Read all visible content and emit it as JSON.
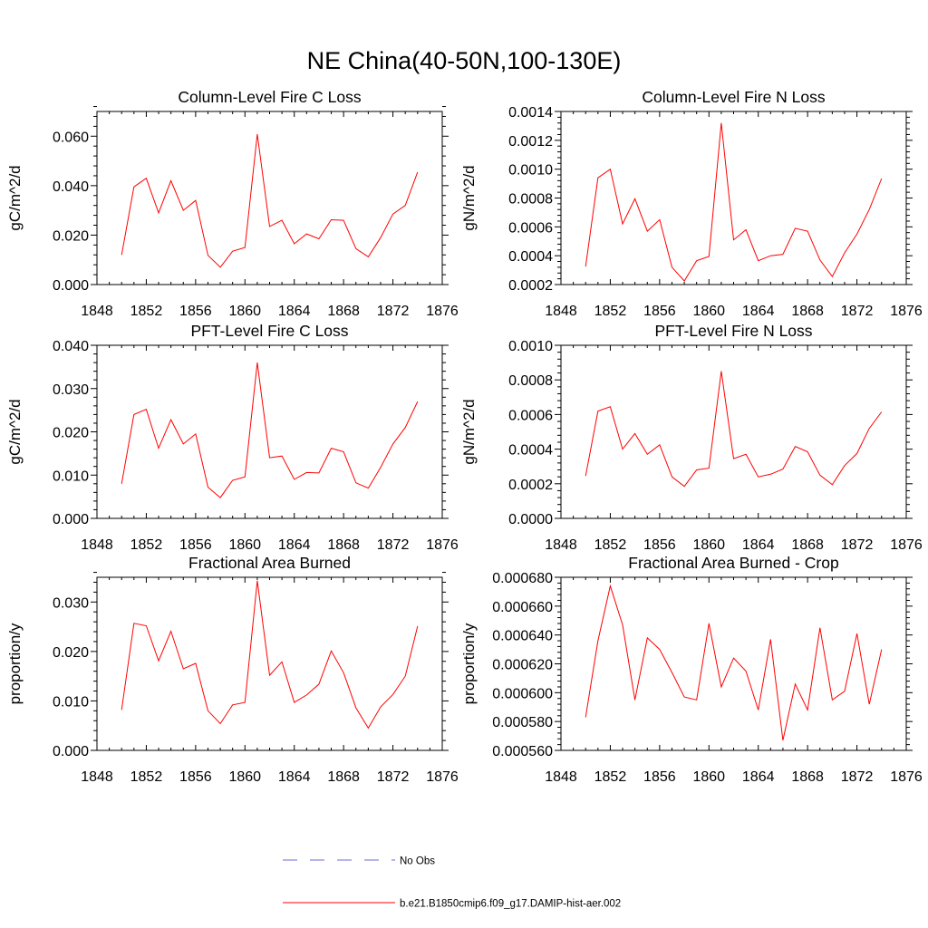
{
  "figure": {
    "title": "NE China(40-50N,100-130E)",
    "legend": {
      "no_obs_label": "No Obs",
      "no_obs_color": "#6b6bd6",
      "model_label": "b.e21.B1850cmip6.f09_g17.DAMIP-hist-aer.002",
      "model_color": "#ff0000"
    }
  },
  "chart_data": [
    {
      "type": "line",
      "title": "Column-Level Fire C Loss",
      "ylabel": "gC/m^2/d",
      "xlabel": "",
      "xlim": [
        1848,
        1876
      ],
      "ylim": [
        0,
        0.07
      ],
      "xticks": [
        "1848",
        "1852",
        "1856",
        "1860",
        "1864",
        "1868",
        "1872",
        "1876"
      ],
      "yticks": [
        "0.000",
        "0.020",
        "0.040",
        "0.060"
      ],
      "ytick_values": [
        0,
        0.02,
        0.04,
        0.06
      ],
      "x": [
        1850,
        1851,
        1852,
        1853,
        1854,
        1855,
        1856,
        1857,
        1858,
        1859,
        1860,
        1861,
        1862,
        1863,
        1864,
        1865,
        1866,
        1867,
        1868,
        1869,
        1870,
        1871,
        1872,
        1873,
        1874
      ],
      "series": [
        {
          "name": "b.e21.B1850cmip6.f09_g17.DAMIP-hist-aer.002",
          "color": "#ff0000",
          "values": [
            0.012,
            0.0395,
            0.043,
            0.029,
            0.042,
            0.03,
            0.034,
            0.0118,
            0.007,
            0.0135,
            0.015,
            0.0608,
            0.0235,
            0.026,
            0.0165,
            0.0205,
            0.0185,
            0.0262,
            0.026,
            0.0145,
            0.0112,
            0.019,
            0.0285,
            0.032,
            0.0455
          ]
        }
      ]
    },
    {
      "type": "line",
      "title": "Column-Level Fire N Loss",
      "ylabel": "gN/m^2/d",
      "xlabel": "",
      "xlim": [
        1848,
        1876
      ],
      "ylim": [
        0.0002,
        0.0014
      ],
      "xticks": [
        "1848",
        "1852",
        "1856",
        "1860",
        "1864",
        "1868",
        "1872",
        "1876"
      ],
      "yticks": [
        "0.0002",
        "0.0004",
        "0.0006",
        "0.0008",
        "0.0010",
        "0.0012",
        "0.0014"
      ],
      "ytick_values": [
        0.0002,
        0.0004,
        0.0006,
        0.0008,
        0.001,
        0.0012,
        0.0014
      ],
      "x": [
        1850,
        1851,
        1852,
        1853,
        1854,
        1855,
        1856,
        1857,
        1858,
        1859,
        1860,
        1861,
        1862,
        1863,
        1864,
        1865,
        1866,
        1867,
        1868,
        1869,
        1870,
        1871,
        1872,
        1873,
        1874
      ],
      "series": [
        {
          "name": "b.e21.B1850cmip6.f09_g17.DAMIP-hist-aer.002",
          "color": "#ff0000",
          "values": [
            0.000325,
            0.00094,
            0.001,
            0.00062,
            0.000795,
            0.00057,
            0.00065,
            0.00032,
            0.000225,
            0.000365,
            0.000395,
            0.00132,
            0.00051,
            0.00058,
            0.000365,
            0.0004,
            0.00041,
            0.00059,
            0.00057,
            0.00037,
            0.000255,
            0.00042,
            0.00055,
            0.00072,
            0.000935
          ]
        }
      ]
    },
    {
      "type": "line",
      "title": "PFT-Level Fire C Loss",
      "ylabel": "gC/m^2/d",
      "xlabel": "",
      "xlim": [
        1848,
        1876
      ],
      "ylim": [
        0,
        0.04
      ],
      "xticks": [
        "1848",
        "1852",
        "1856",
        "1860",
        "1864",
        "1868",
        "1872",
        "1876"
      ],
      "yticks": [
        "0.000",
        "0.010",
        "0.020",
        "0.030",
        "0.040"
      ],
      "ytick_values": [
        0,
        0.01,
        0.02,
        0.03,
        0.04
      ],
      "x": [
        1850,
        1851,
        1852,
        1853,
        1854,
        1855,
        1856,
        1857,
        1858,
        1859,
        1860,
        1861,
        1862,
        1863,
        1864,
        1865,
        1866,
        1867,
        1868,
        1869,
        1870,
        1871,
        1872,
        1873,
        1874
      ],
      "series": [
        {
          "name": "b.e21.B1850cmip6.f09_g17.DAMIP-hist-aer.002",
          "color": "#ff0000",
          "values": [
            0.008,
            0.024,
            0.0252,
            0.0162,
            0.0228,
            0.0172,
            0.0195,
            0.0072,
            0.0048,
            0.0088,
            0.0096,
            0.036,
            0.014,
            0.0144,
            0.009,
            0.0106,
            0.0105,
            0.0162,
            0.0154,
            0.0082,
            0.007,
            0.0118,
            0.0172,
            0.021,
            0.027
          ]
        }
      ]
    },
    {
      "type": "line",
      "title": "PFT-Level Fire N Loss",
      "ylabel": "gN/m^2/d",
      "xlabel": "",
      "xlim": [
        1848,
        1876
      ],
      "ylim": [
        0,
        0.001
      ],
      "xticks": [
        "1848",
        "1852",
        "1856",
        "1860",
        "1864",
        "1868",
        "1872",
        "1876"
      ],
      "yticks": [
        "0.0000",
        "0.0002",
        "0.0004",
        "0.0006",
        "0.0008",
        "0.0010"
      ],
      "ytick_values": [
        0,
        0.0002,
        0.0004,
        0.0006,
        0.0008,
        0.001
      ],
      "x": [
        1850,
        1851,
        1852,
        1853,
        1854,
        1855,
        1856,
        1857,
        1858,
        1859,
        1860,
        1861,
        1862,
        1863,
        1864,
        1865,
        1866,
        1867,
        1868,
        1869,
        1870,
        1871,
        1872,
        1873,
        1874
      ],
      "series": [
        {
          "name": "b.e21.B1850cmip6.f09_g17.DAMIP-hist-aer.002",
          "color": "#ff0000",
          "values": [
            0.000245,
            0.00062,
            0.000645,
            0.0004,
            0.00049,
            0.00037,
            0.000425,
            0.00024,
            0.000185,
            0.00028,
            0.00029,
            0.00085,
            0.000345,
            0.00037,
            0.00024,
            0.000255,
            0.000285,
            0.000415,
            0.000385,
            0.00025,
            0.000195,
            0.000305,
            0.000375,
            0.00052,
            0.000615
          ]
        }
      ]
    },
    {
      "type": "line",
      "title": "Fractional Area Burned",
      "ylabel": "proportion/y",
      "xlabel": "",
      "xlim": [
        1848,
        1876
      ],
      "ylim": [
        0,
        0.035
      ],
      "xticks": [
        "1848",
        "1852",
        "1856",
        "1860",
        "1864",
        "1868",
        "1872",
        "1876"
      ],
      "yticks": [
        "0.000",
        "0.010",
        "0.020",
        "0.030"
      ],
      "ytick_values": [
        0,
        0.01,
        0.02,
        0.03
      ],
      "x": [
        1850,
        1851,
        1852,
        1853,
        1854,
        1855,
        1856,
        1857,
        1858,
        1859,
        1860,
        1861,
        1862,
        1863,
        1864,
        1865,
        1866,
        1867,
        1868,
        1869,
        1870,
        1871,
        1872,
        1873,
        1874
      ],
      "series": [
        {
          "name": "b.e21.B1850cmip6.f09_g17.DAMIP-hist-aer.002",
          "color": "#ff0000",
          "values": [
            0.0082,
            0.0257,
            0.0252,
            0.0181,
            0.0241,
            0.0165,
            0.0176,
            0.008,
            0.0054,
            0.0092,
            0.0097,
            0.0343,
            0.0152,
            0.0179,
            0.0097,
            0.0112,
            0.0134,
            0.0201,
            0.0157,
            0.0086,
            0.0045,
            0.0088,
            0.0113,
            0.015,
            0.0251
          ]
        }
      ]
    },
    {
      "type": "line",
      "title": "Fractional Area Burned - Crop",
      "ylabel": "proportion/y",
      "xlabel": "",
      "xlim": [
        1848,
        1876
      ],
      "ylim": [
        0.00056,
        0.00068
      ],
      "xticks": [
        "1848",
        "1852",
        "1856",
        "1860",
        "1864",
        "1868",
        "1872",
        "1876"
      ],
      "yticks": [
        "0.000560",
        "0.000580",
        "0.000600",
        "0.000620",
        "0.000640",
        "0.000660",
        "0.000680"
      ],
      "ytick_values": [
        0.00056,
        0.00058,
        0.0006,
        0.00062,
        0.00064,
        0.00066,
        0.00068
      ],
      "x": [
        1850,
        1851,
        1852,
        1853,
        1854,
        1855,
        1856,
        1857,
        1858,
        1859,
        1860,
        1861,
        1862,
        1863,
        1864,
        1865,
        1866,
        1867,
        1868,
        1869,
        1870,
        1871,
        1872,
        1873,
        1874
      ],
      "series": [
        {
          "name": "b.e21.B1850cmip6.f09_g17.DAMIP-hist-aer.002",
          "color": "#ff0000",
          "values": [
            0.000583,
            0.000636,
            0.000674,
            0.000647,
            0.000595,
            0.000638,
            0.00063,
            0.000614,
            0.000597,
            0.000595,
            0.000648,
            0.000604,
            0.000624,
            0.000615,
            0.000588,
            0.000637,
            0.000567,
            0.000606,
            0.000588,
            0.000645,
            0.000595,
            0.000601,
            0.000641,
            0.000592,
            0.00063
          ]
        }
      ]
    }
  ]
}
